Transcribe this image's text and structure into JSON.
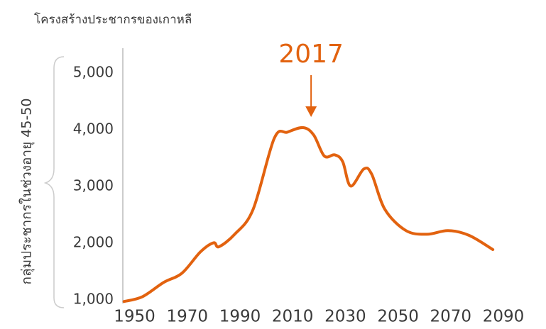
{
  "chart_data": {
    "type": "line",
    "title": "โครงสร้างประชากรของเกาหลี",
    "y_label": "กลุ่มประชากรในช่วงอายุ 45-50",
    "annotation": 2017,
    "x": [
      1946,
      1953,
      1961,
      1968,
      1975,
      1980,
      1982,
      1988,
      1995,
      2003,
      2008,
      2014,
      2018,
      2022,
      2026,
      2029,
      2032,
      2037,
      2040,
      2045,
      2053,
      2061,
      2069,
      2077,
      2086
    ],
    "series": [
      {
        "color": "#e2620f",
        "values": [
          975,
          1060,
          1310,
          1475,
          1850,
          2010,
          1940,
          2160,
          2600,
          3850,
          3960,
          4040,
          3910,
          3540,
          3560,
          3440,
          3010,
          3310,
          3220,
          2600,
          2225,
          2160,
          2225,
          2140,
          1890
        ]
      }
    ],
    "xlim": [
      1945,
      2090
    ],
    "xticks": [
      1950,
      1970,
      1990,
      2010,
      2030,
      2050,
      2070,
      2090
    ],
    "ylim": [
      940,
      5440
    ],
    "yticks": [
      {
        "value": 1000,
        "label": "1,000"
      },
      {
        "value": 2000,
        "label": "2,000"
      },
      {
        "value": 3000,
        "label": "3,000"
      },
      {
        "value": 4000,
        "label": "4,000"
      },
      {
        "value": 5000,
        "label": "5,000"
      }
    ]
  }
}
